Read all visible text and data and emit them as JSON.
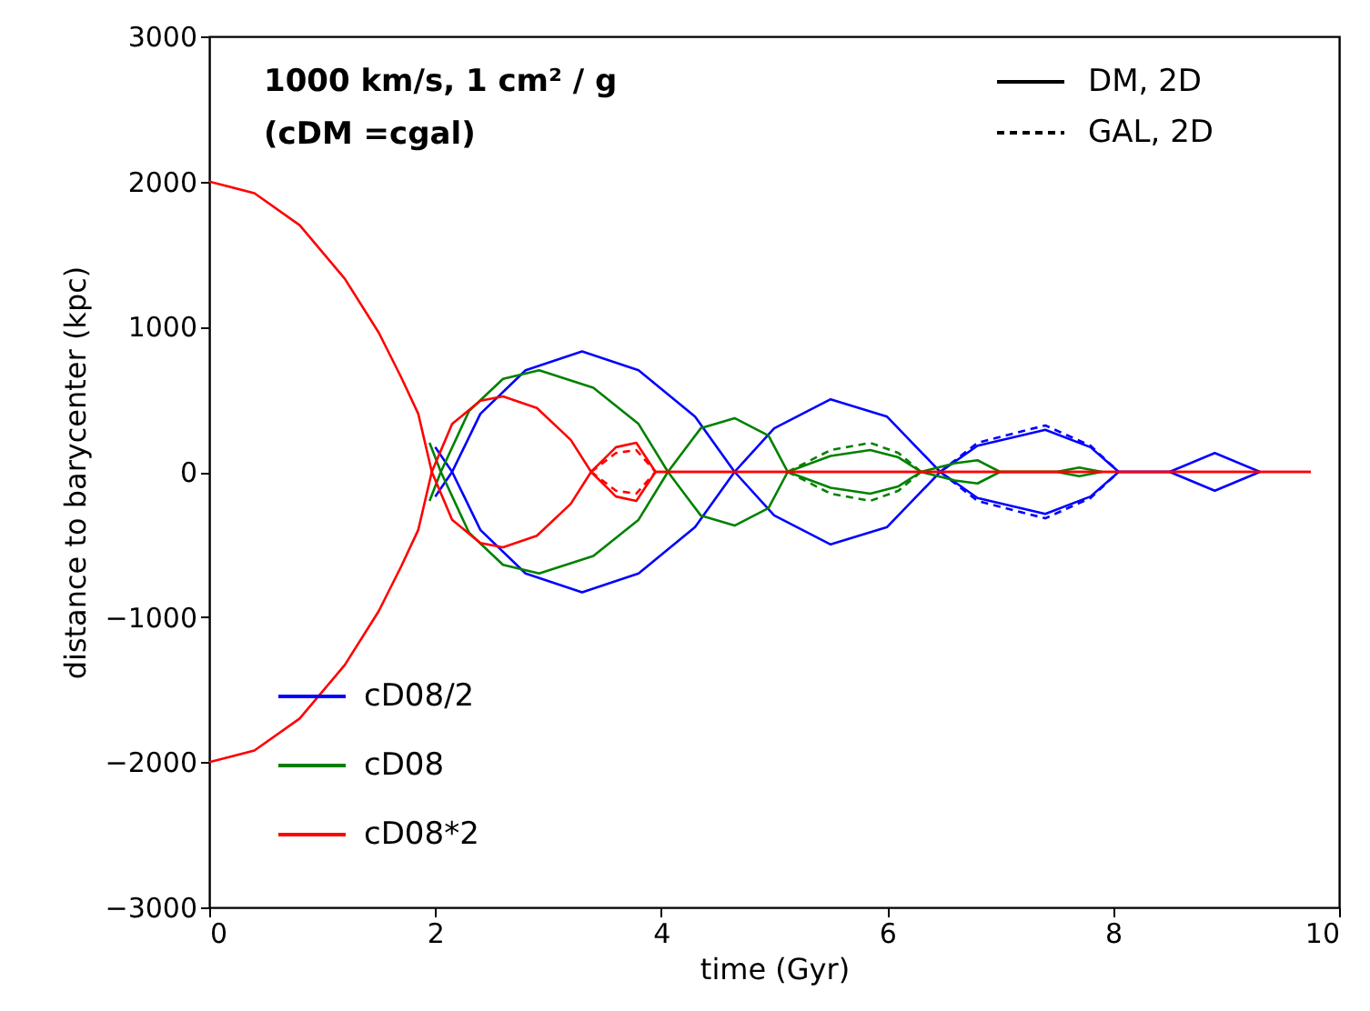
{
  "chart_data": {
    "type": "line",
    "title": "1000 km/s, 1 cm² / g",
    "subtitle": "(cDM =cgal)",
    "xlabel": "time (Gyr)",
    "ylabel": "distance to barycenter (kpc)",
    "xlim": [
      0,
      10
    ],
    "xticks": [
      0,
      2,
      4,
      6,
      8,
      10
    ],
    "ylim": [
      -3000,
      3000
    ],
    "yticks": [
      {
        "value": -3000,
        "label": "−3000"
      },
      {
        "value": -2000,
        "label": "−2000"
      },
      {
        "value": -1000,
        "label": "−1000"
      },
      0,
      1000,
      2000,
      3000
    ],
    "grid": false,
    "legend": "bottom left",
    "marker": "none",
    "annotations": [
      "DM, 2D",
      "GAL, 2D"
    ],
    "series": [
      {
        "name": "cD08/2",
        "color": "#0000ff",
        "line_style": "solid",
        "x": [
          2.0,
          2.15,
          2.4,
          2.8,
          3.3,
          3.8,
          4.3,
          4.65,
          5.0,
          5.5,
          6.0,
          6.47,
          6.8,
          7.4,
          7.8,
          8.05,
          8.5,
          8.9,
          9.3
        ],
        "values": [
          170,
          0,
          -400,
          -700,
          -830,
          -700,
          -380,
          0,
          300,
          500,
          380,
          0,
          -180,
          -290,
          -170,
          0,
          0,
          130,
          0
        ]
      },
      {
        "color": "#0000ff",
        "line_style": "solid",
        "x": [
          2.0,
          2.15,
          2.4,
          2.8,
          3.3,
          3.8,
          4.3,
          4.65,
          5.0,
          5.5,
          6.0,
          6.47,
          6.8,
          7.4,
          7.8,
          8.05,
          8.5,
          8.9,
          9.3
        ],
        "values": [
          -170,
          0,
          400,
          700,
          830,
          700,
          380,
          0,
          -300,
          -500,
          -380,
          0,
          180,
          290,
          170,
          0,
          0,
          -130,
          0
        ]
      },
      {
        "color": "#0000ff",
        "line_style": "dashed",
        "x": [
          6.47,
          6.8,
          7.4,
          7.8,
          8.05
        ],
        "values": [
          0,
          -200,
          -320,
          -180,
          0
        ]
      },
      {
        "color": "#0000ff",
        "line_style": "dashed",
        "x": [
          6.47,
          6.8,
          7.4,
          7.8,
          8.05
        ],
        "values": [
          0,
          200,
          320,
          180,
          0
        ]
      },
      {
        "name": "cD08",
        "color": "#008000",
        "line_style": "solid",
        "x": [
          1.95,
          2.05,
          2.3,
          2.6,
          2.92,
          3.4,
          3.8,
          4.06,
          4.35,
          4.65,
          4.95,
          5.12,
          5.5,
          5.85,
          6.1,
          6.3,
          6.6,
          6.8,
          7.0,
          7.5,
          7.7,
          7.9
        ],
        "values": [
          200,
          0,
          -420,
          -640,
          -700,
          -580,
          -330,
          0,
          300,
          370,
          250,
          0,
          -110,
          -150,
          -100,
          0,
          60,
          80,
          0,
          0,
          30,
          0
        ]
      },
      {
        "color": "#008000",
        "line_style": "solid",
        "x": [
          1.95,
          2.05,
          2.3,
          2.6,
          2.92,
          3.4,
          3.8,
          4.06,
          4.35,
          4.65,
          4.95,
          5.12,
          5.5,
          5.85,
          6.1,
          6.3,
          6.6,
          6.8,
          7.0,
          7.5,
          7.7,
          7.9
        ],
        "values": [
          -200,
          0,
          420,
          640,
          700,
          580,
          330,
          0,
          -300,
          -370,
          -250,
          0,
          110,
          150,
          100,
          0,
          -60,
          -80,
          0,
          0,
          -30,
          0
        ]
      },
      {
        "color": "#008000",
        "line_style": "dashed",
        "x": [
          5.12,
          5.5,
          5.85,
          6.1,
          6.3
        ],
        "values": [
          0,
          -150,
          -200,
          -130,
          0
        ]
      },
      {
        "color": "#008000",
        "line_style": "dashed",
        "x": [
          5.12,
          5.5,
          5.85,
          6.1,
          6.3
        ],
        "values": [
          0,
          150,
          200,
          130,
          0
        ]
      },
      {
        "name": "cD08*2",
        "color": "#ff0000",
        "line_style": "solid",
        "x": [
          0,
          0.4,
          0.8,
          1.2,
          1.5,
          1.7,
          1.85,
          1.97,
          2.15,
          2.4,
          2.6,
          2.9,
          3.2,
          3.38,
          3.6,
          3.78,
          3.95,
          4.5,
          9.75
        ],
        "values": [
          2000,
          1920,
          1700,
          1330,
          960,
          650,
          400,
          0,
          -330,
          -490,
          -520,
          -440,
          -220,
          0,
          170,
          200,
          0,
          0,
          0
        ]
      },
      {
        "color": "#ff0000",
        "line_style": "solid",
        "x": [
          0,
          0.4,
          0.8,
          1.2,
          1.5,
          1.7,
          1.85,
          1.97,
          2.15,
          2.4,
          2.6,
          2.9,
          3.2,
          3.38,
          3.6,
          3.78,
          3.95,
          4.5,
          9.75
        ],
        "values": [
          -2000,
          -1920,
          -1700,
          -1330,
          -960,
          -650,
          -400,
          0,
          330,
          490,
          520,
          440,
          220,
          0,
          -170,
          -200,
          0,
          0,
          0
        ]
      },
      {
        "color": "#ff0000",
        "line_style": "dashed",
        "x": [
          3.38,
          3.6,
          3.78,
          3.95
        ],
        "values": [
          0,
          130,
          150,
          0
        ]
      },
      {
        "color": "#ff0000",
        "line_style": "dashed",
        "x": [
          3.38,
          3.6,
          3.78,
          3.95
        ],
        "values": [
          0,
          -130,
          -150,
          0
        ]
      }
    ]
  }
}
